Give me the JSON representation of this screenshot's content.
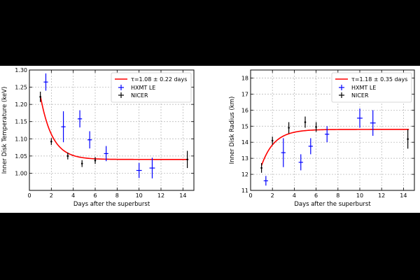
{
  "chart_data": [
    {
      "type": "scatter",
      "xlabel": "Days after the superburst",
      "ylabel": "Inner Disk Temperature (keV)",
      "xlim": [
        0,
        15
      ],
      "ylim": [
        0.95,
        1.3
      ],
      "xticks": [
        0,
        2,
        4,
        6,
        8,
        10,
        12,
        14
      ],
      "yticks": [
        1.0,
        1.05,
        1.1,
        1.15,
        1.2,
        1.25,
        1.3
      ],
      "ytick_labels": [
        "1.00",
        "1.05",
        "1.10",
        "1.15",
        "1.20",
        "1.25",
        "1.30"
      ],
      "grid": true,
      "legend_position": "top-right",
      "model_label": "τ=1.08 ± 0.22 days",
      "model": {
        "type": "exponential",
        "t0": 1.0,
        "y0": 1.225,
        "y_inf": 1.04,
        "tau": 1.08,
        "x_end": 14.5
      },
      "series": [
        {
          "name": "HXMT LE",
          "color": "#0000ff",
          "points": [
            {
              "x": 1.5,
              "y": 1.265,
              "yerr": 0.025,
              "xerr": 0.2
            },
            {
              "x": 3.1,
              "y": 1.135,
              "yerr": 0.045,
              "xerr": 0.2
            },
            {
              "x": 4.6,
              "y": 1.158,
              "yerr": 0.025,
              "xerr": 0.2
            },
            {
              "x": 5.5,
              "y": 1.097,
              "yerr": 0.025,
              "xerr": 0.2
            },
            {
              "x": 7.0,
              "y": 1.057,
              "yerr": 0.022,
              "xerr": 0.2
            },
            {
              "x": 10.0,
              "y": 1.008,
              "yerr": 0.022,
              "xerr": 0.25
            },
            {
              "x": 11.2,
              "y": 1.015,
              "yerr": 0.03,
              "xerr": 0.25
            }
          ]
        },
        {
          "name": "NICER",
          "color": "#000000",
          "points": [
            {
              "x": 1.0,
              "y": 1.222,
              "yerr": 0.015,
              "xerr": 0.05
            },
            {
              "x": 2.0,
              "y": 1.092,
              "yerr": 0.01,
              "xerr": 0.05
            },
            {
              "x": 3.5,
              "y": 1.05,
              "yerr": 0.01,
              "xerr": 0.05
            },
            {
              "x": 4.8,
              "y": 1.028,
              "yerr": 0.01,
              "xerr": 0.05
            },
            {
              "x": 6.0,
              "y": 1.037,
              "yerr": 0.01,
              "xerr": 0.05
            },
            {
              "x": 14.4,
              "y": 1.04,
              "yerr": 0.025,
              "xerr": 0.05
            }
          ]
        }
      ]
    },
    {
      "type": "scatter",
      "xlabel": "Days after the superburst",
      "ylabel": "Inner Disk Radius (km)",
      "xlim": [
        0,
        15
      ],
      "ylim": [
        11,
        18.5
      ],
      "xticks": [
        0,
        2,
        4,
        6,
        8,
        10,
        12,
        14
      ],
      "yticks": [
        11,
        12,
        13,
        14,
        15,
        16,
        17,
        18
      ],
      "ytick_labels": [
        "11",
        "12",
        "13",
        "14",
        "15",
        "16",
        "17",
        "18"
      ],
      "grid": true,
      "legend_position": "top-right",
      "model_label": "τ=1.18 ± 0.35 days",
      "model": {
        "type": "exponential",
        "t0": 1.0,
        "y0": 12.55,
        "y_inf": 14.8,
        "tau": 1.18,
        "x_end": 14.5
      },
      "series": [
        {
          "name": "HXMT LE",
          "color": "#0000ff",
          "points": [
            {
              "x": 1.4,
              "y": 11.6,
              "yerr": 0.3,
              "xerr": 0.2
            },
            {
              "x": 3.0,
              "y": 13.35,
              "yerr": 0.9,
              "xerr": 0.2
            },
            {
              "x": 4.6,
              "y": 12.75,
              "yerr": 0.5,
              "xerr": 0.2
            },
            {
              "x": 5.5,
              "y": 13.75,
              "yerr": 0.5,
              "xerr": 0.2
            },
            {
              "x": 7.0,
              "y": 14.5,
              "yerr": 0.5,
              "xerr": 0.2
            },
            {
              "x": 10.0,
              "y": 15.5,
              "yerr": 0.6,
              "xerr": 0.25
            },
            {
              "x": 11.2,
              "y": 15.2,
              "yerr": 0.8,
              "xerr": 0.25
            }
          ]
        },
        {
          "name": "NICER",
          "color": "#000000",
          "points": [
            {
              "x": 1.0,
              "y": 12.4,
              "yerr": 0.3,
              "xerr": 0.05
            },
            {
              "x": 2.0,
              "y": 14.1,
              "yerr": 0.25,
              "xerr": 0.05
            },
            {
              "x": 3.5,
              "y": 14.9,
              "yerr": 0.35,
              "xerr": 0.05
            },
            {
              "x": 5.0,
              "y": 15.25,
              "yerr": 0.35,
              "xerr": 0.05
            },
            {
              "x": 6.0,
              "y": 14.95,
              "yerr": 0.3,
              "xerr": 0.05
            },
            {
              "x": 14.4,
              "y": 14.2,
              "yerr": 0.6,
              "xerr": 0.05
            }
          ]
        }
      ]
    }
  ],
  "colors": {
    "model": "#ff0000",
    "hxmt": "#0000ff",
    "nicer": "#000000",
    "background": "#000000",
    "panel": "#ffffff"
  }
}
